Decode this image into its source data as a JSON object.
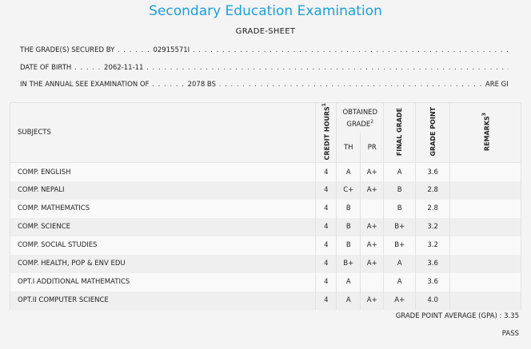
{
  "title": "Secondary Education Examination",
  "subtitle": "GRADE-SHEET",
  "lines": {
    "grade_secured_prefix": "THE GRADE(S) SECURED BY",
    "symbol_no": "02915571I",
    "dob_prefix": "DATE OF BIRTH",
    "dob": "2062-11-11",
    "exam_prefix": "IN THE ANNUAL SEE EXAMINATION OF",
    "exam_year": "2078 BS",
    "exam_suffix": "ARE GIVEN BELOW"
  },
  "headers": {
    "subjects": "SUBJECTS",
    "credit_hours": "CREDIT HOURS",
    "credit_sup": "1",
    "obtained_grade": "OBTAINED GRADE",
    "obtained_sup": "2",
    "th": "TH",
    "pr": "PR",
    "final_grade": "FINAL GRADE",
    "grade_point": "GRADE POINT",
    "remarks": "REMARKS",
    "remarks_sup": "3"
  },
  "rows": [
    {
      "subject": "COMP. ENGLISH",
      "credit": "4",
      "th": "A",
      "pr": "A+",
      "final": "A",
      "gp": "3.6",
      "remarks": ""
    },
    {
      "subject": "COMP. NEPALI",
      "credit": "4",
      "th": "C+",
      "pr": "A+",
      "final": "B",
      "gp": "2.8",
      "remarks": ""
    },
    {
      "subject": "COMP. MATHEMATICS",
      "credit": "4",
      "th": "B",
      "pr": "",
      "final": "B",
      "gp": "2.8",
      "remarks": ""
    },
    {
      "subject": "COMP. SCIENCE",
      "credit": "4",
      "th": "B",
      "pr": "A+",
      "final": "B+",
      "gp": "3.2",
      "remarks": ""
    },
    {
      "subject": "COMP. SOCIAL STUDIES",
      "credit": "4",
      "th": "B",
      "pr": "A+",
      "final": "B+",
      "gp": "3.2",
      "remarks": ""
    },
    {
      "subject": "COMP. HEALTH, POP & ENV EDU",
      "credit": "4",
      "th": "B+",
      "pr": "A+",
      "final": "A",
      "gp": "3.6",
      "remarks": ""
    },
    {
      "subject": "OPT.I ADDITIONAL MATHEMATICS",
      "credit": "4",
      "th": "A",
      "pr": "",
      "final": "A",
      "gp": "3.6",
      "remarks": ""
    },
    {
      "subject": "OPT.II COMPUTER SCIENCE",
      "credit": "4",
      "th": "A",
      "pr": "A+",
      "final": "A+",
      "gp": "4.0",
      "remarks": ""
    }
  ],
  "gpa": "GRADE POINT AVERAGE (GPA) : 3.35",
  "result": "PASS"
}
